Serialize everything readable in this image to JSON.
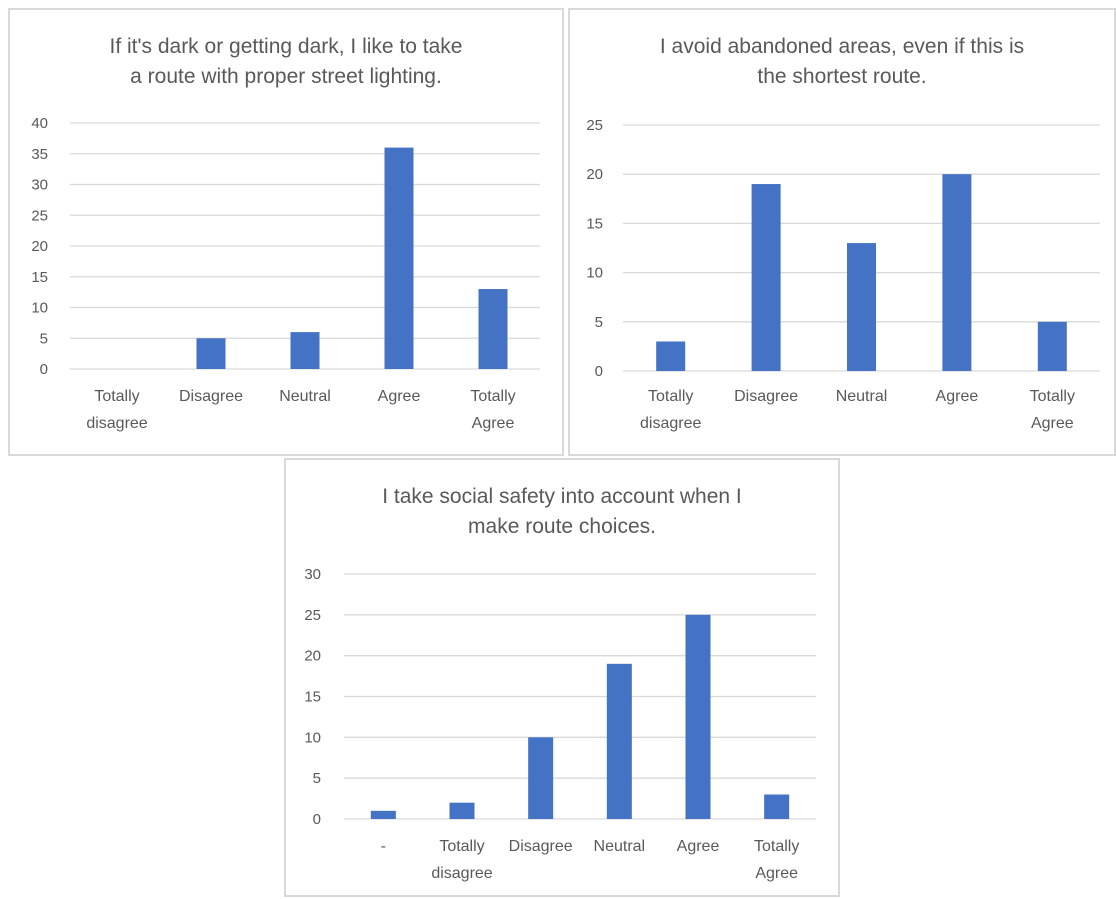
{
  "colors": {
    "bar": "#4472c4",
    "grid": "#d9d9d9",
    "text": "#595959"
  },
  "chart_data": [
    {
      "type": "bar",
      "title_lines": [
        "If it's dark or getting dark, I like to take",
        "a route with proper street lighting."
      ],
      "categories": [
        [
          "Totally",
          "disagree"
        ],
        [
          "Disagree"
        ],
        [
          "Neutral"
        ],
        [
          "Agree"
        ],
        [
          "Totally",
          "Agree"
        ]
      ],
      "values": [
        0,
        5,
        6,
        36,
        13
      ],
      "ylim": [
        0,
        40
      ],
      "yticks": [
        0,
        5,
        10,
        15,
        20,
        25,
        30,
        35,
        40
      ],
      "grid": true,
      "legend": "none"
    },
    {
      "type": "bar",
      "title_lines": [
        "I avoid abandoned areas, even if this is",
        "the shortest route."
      ],
      "categories": [
        [
          "Totally",
          "disagree"
        ],
        [
          "Disagree"
        ],
        [
          "Neutral"
        ],
        [
          "Agree"
        ],
        [
          "Totally",
          "Agree"
        ]
      ],
      "values": [
        3,
        19,
        13,
        20,
        5
      ],
      "ylim": [
        0,
        25
      ],
      "yticks": [
        0,
        5,
        10,
        15,
        20,
        25
      ],
      "grid": true,
      "legend": "none"
    },
    {
      "type": "bar",
      "title_lines": [
        "I take social safety into account when I",
        "make route choices."
      ],
      "categories": [
        [
          "-"
        ],
        [
          "Totally",
          "disagree"
        ],
        [
          "Disagree"
        ],
        [
          "Neutral"
        ],
        [
          "Agree"
        ],
        [
          "Totally",
          "Agree"
        ]
      ],
      "values": [
        1,
        2,
        10,
        19,
        25,
        3
      ],
      "ylim": [
        0,
        30
      ],
      "yticks": [
        0,
        5,
        10,
        15,
        20,
        25,
        30
      ],
      "grid": true,
      "legend": "none"
    }
  ]
}
